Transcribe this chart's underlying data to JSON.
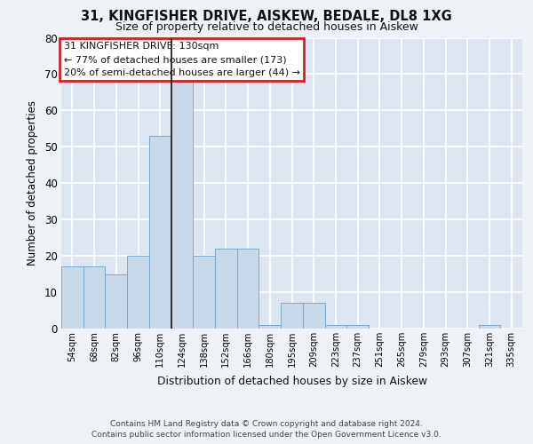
{
  "title": "31, KINGFISHER DRIVE, AISKEW, BEDALE, DL8 1XG",
  "subtitle": "Size of property relative to detached houses in Aiskew",
  "xlabel": "Distribution of detached houses by size in Aiskew",
  "ylabel": "Number of detached properties",
  "categories": [
    "54sqm",
    "68sqm",
    "82sqm",
    "96sqm",
    "110sqm",
    "124sqm",
    "138sqm",
    "152sqm",
    "166sqm",
    "180sqm",
    "195sqm",
    "209sqm",
    "223sqm",
    "237sqm",
    "251sqm",
    "265sqm",
    "279sqm",
    "293sqm",
    "307sqm",
    "321sqm",
    "335sqm"
  ],
  "values": [
    17,
    17,
    15,
    20,
    53,
    68,
    20,
    22,
    22,
    1,
    7,
    7,
    1,
    1,
    0,
    0,
    0,
    0,
    0,
    1,
    0
  ],
  "bar_color": "#c9d9ea",
  "bar_edge_color": "#7aaac8",
  "vline_x_index": 5,
  "vline_color": "#222222",
  "annotation_line1": "31 KINGFISHER DRIVE: 130sqm",
  "annotation_line2": "← 77% of detached houses are smaller (173)",
  "annotation_line3": "20% of semi-detached houses are larger (44) →",
  "box_edge_color": "#cc2222",
  "ylim": [
    0,
    80
  ],
  "yticks": [
    0,
    10,
    20,
    30,
    40,
    50,
    60,
    70,
    80
  ],
  "fig_bg_color": "#eef2f7",
  "axes_bg_color": "#dde6f0",
  "grid_color": "#ffffff",
  "footer": "Contains HM Land Registry data © Crown copyright and database right 2024.\nContains public sector information licensed under the Open Government Licence v3.0."
}
